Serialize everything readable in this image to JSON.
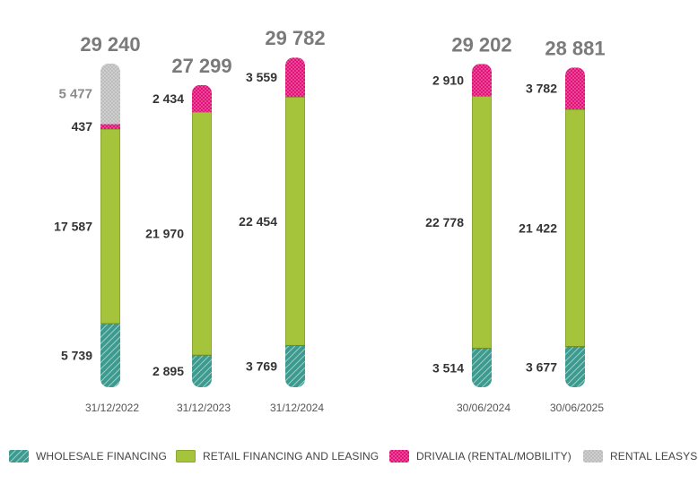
{
  "chart_data": {
    "type": "bar",
    "stacked": true,
    "categories": [
      "31/12/2022",
      "31/12/2023",
      "31/12/2024",
      "30/06/2024",
      "30/06/2025"
    ],
    "totals": [
      "29 240",
      "27 299",
      "29 782",
      "29 202",
      "28 881"
    ],
    "series": [
      {
        "name": "WHOLESALE FINANCING",
        "values": [
          5739,
          2895,
          3769,
          3514,
          3677
        ],
        "labels": [
          "5 739",
          "2 895",
          "3 769",
          "3 514",
          "3 677"
        ]
      },
      {
        "name": "RETAIL FINANCING AND LEASING",
        "values": [
          17587,
          21970,
          22454,
          22778,
          21422
        ],
        "labels": [
          "17 587",
          "21 970",
          "22 454",
          "22 778",
          "21 422"
        ]
      },
      {
        "name": "DRIVALIA (RENTAL/MOBILITY)",
        "values": [
          437,
          2434,
          3559,
          2910,
          3782
        ],
        "labels": [
          "437",
          "2 434",
          "3 559",
          "2 910",
          "3 782"
        ]
      },
      {
        "name": "RENTAL LEASYS",
        "values": [
          5477,
          0,
          0,
          0,
          0
        ],
        "labels": [
          "5 477",
          "",
          "",
          "",
          ""
        ]
      }
    ],
    "colors": {
      "wholesale": "#3c9a8f",
      "retail": "#a5c43c",
      "drivalia": "#e2127a",
      "leasys": "#bdbdbd"
    },
    "grid": false,
    "legend_position": "bottom"
  }
}
